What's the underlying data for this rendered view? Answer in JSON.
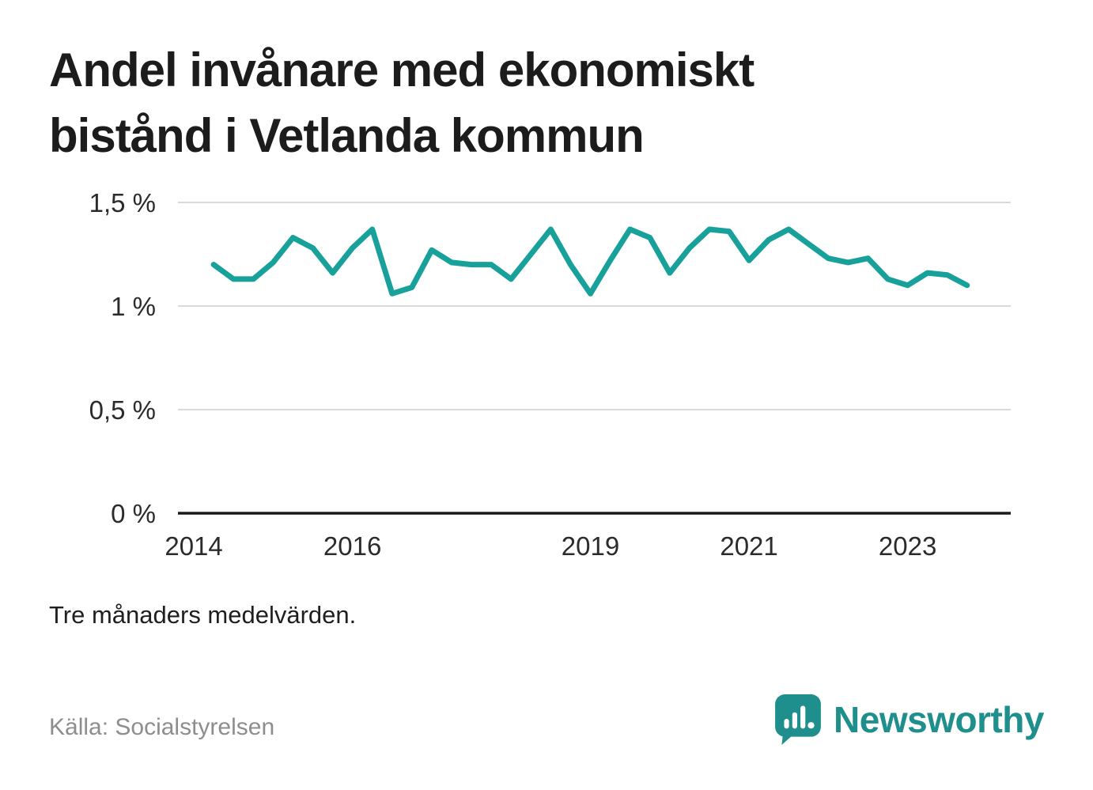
{
  "title": {
    "line1": "Andel invånare med ekonomiskt",
    "line2": "bistånd i Vetlanda kommun"
  },
  "note": "Tre månaders medelvärden.",
  "source": "Källa: Socialstyrelsen",
  "brand": {
    "name": "Newsworthy",
    "color": "#1e8f8c"
  },
  "colors": {
    "line": "#18a19b",
    "grid": "#d9d9d9",
    "axis": "#1a1a1a"
  },
  "chart_data": {
    "type": "line",
    "title": "Andel invånare med ekonomiskt bistånd i Vetlanda kommun",
    "unit": "%",
    "xlabel": "",
    "ylabel": "",
    "grid": "horizontal",
    "xlim": [
      2013.8,
      2024.3
    ],
    "ylim": [
      0,
      1.58
    ],
    "x_ticks": [
      {
        "value": 2014,
        "label": "2014"
      },
      {
        "value": 2016,
        "label": "2016"
      },
      {
        "value": 2019,
        "label": "2019"
      },
      {
        "value": 2021,
        "label": "2021"
      },
      {
        "value": 2023,
        "label": "2023"
      }
    ],
    "y_ticks": [
      {
        "value": 0,
        "label": "0 %"
      },
      {
        "value": 0.5,
        "label": "0,5 %"
      },
      {
        "value": 1,
        "label": "1 %"
      },
      {
        "value": 1.5,
        "label": "1,5 %"
      }
    ],
    "series": [
      {
        "name": "Andel invånare med ekonomiskt bistånd",
        "color": "#18a19b",
        "points": [
          [
            2014.25,
            1.2
          ],
          [
            2014.5,
            1.13
          ],
          [
            2014.75,
            1.13
          ],
          [
            2015.0,
            1.21
          ],
          [
            2015.25,
            1.33
          ],
          [
            2015.5,
            1.28
          ],
          [
            2015.75,
            1.16
          ],
          [
            2016.0,
            1.28
          ],
          [
            2016.25,
            1.37
          ],
          [
            2016.5,
            1.06
          ],
          [
            2016.75,
            1.09
          ],
          [
            2017.0,
            1.27
          ],
          [
            2017.25,
            1.21
          ],
          [
            2017.5,
            1.2
          ],
          [
            2017.75,
            1.2
          ],
          [
            2018.0,
            1.13
          ],
          [
            2018.25,
            1.25
          ],
          [
            2018.5,
            1.37
          ],
          [
            2018.75,
            1.2
          ],
          [
            2019.0,
            1.06
          ],
          [
            2019.25,
            1.22
          ],
          [
            2019.5,
            1.37
          ],
          [
            2019.75,
            1.33
          ],
          [
            2020.0,
            1.16
          ],
          [
            2020.25,
            1.28
          ],
          [
            2020.5,
            1.37
          ],
          [
            2020.75,
            1.36
          ],
          [
            2021.0,
            1.22
          ],
          [
            2021.25,
            1.32
          ],
          [
            2021.5,
            1.37
          ],
          [
            2021.75,
            1.3
          ],
          [
            2022.0,
            1.23
          ],
          [
            2022.25,
            1.21
          ],
          [
            2022.5,
            1.23
          ],
          [
            2022.75,
            1.13
          ],
          [
            2023.0,
            1.1
          ],
          [
            2023.25,
            1.16
          ],
          [
            2023.5,
            1.15
          ],
          [
            2023.75,
            1.1
          ]
        ]
      }
    ]
  }
}
